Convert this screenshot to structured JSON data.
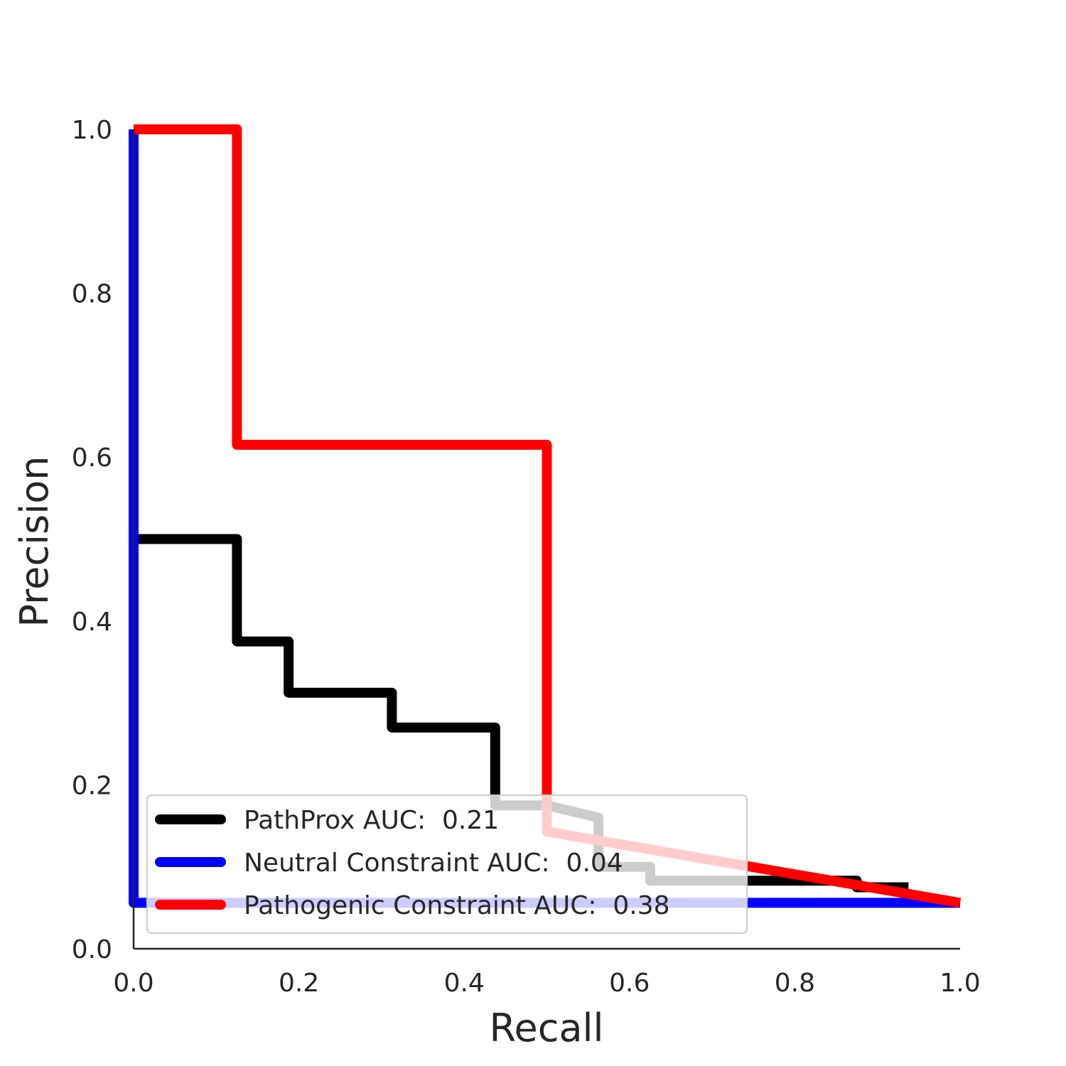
{
  "chart_data": {
    "type": "line",
    "title": "",
    "xlabel": "Recall",
    "ylabel": "Precision",
    "xlim": [
      0.0,
      1.0
    ],
    "ylim": [
      0.0,
      1.0
    ],
    "xticks": [
      "0.0",
      "0.2",
      "0.4",
      "0.6",
      "0.8",
      "1.0"
    ],
    "yticks": [
      "0.0",
      "0.2",
      "0.4",
      "0.6",
      "0.8",
      "1.0"
    ],
    "grid": false,
    "legend_position": "lower-left",
    "series": [
      {
        "name": "PathProx AUC:  0.21",
        "color": "#000000",
        "points": [
          [
            0.0,
            0.5
          ],
          [
            0.125,
            0.5
          ],
          [
            0.125,
            0.375
          ],
          [
            0.1875,
            0.375
          ],
          [
            0.1875,
            0.3125
          ],
          [
            0.3125,
            0.3125
          ],
          [
            0.3125,
            0.27
          ],
          [
            0.4375,
            0.27
          ],
          [
            0.4375,
            0.175
          ],
          [
            0.5,
            0.175
          ],
          [
            0.5625,
            0.16
          ],
          [
            0.5625,
            0.1
          ],
          [
            0.625,
            0.1
          ],
          [
            0.625,
            0.083
          ],
          [
            0.875,
            0.083
          ],
          [
            0.875,
            0.075
          ],
          [
            0.9375,
            0.075
          ]
        ]
      },
      {
        "name": "Neutral Constraint AUC:  0.04",
        "color": "#0000ff",
        "points": [
          [
            0.0,
            1.0
          ],
          [
            0.0,
            0.056
          ],
          [
            1.0,
            0.056
          ]
        ]
      },
      {
        "name": "Pathogenic Constraint AUC:  0.38",
        "color": "#ff0000",
        "points": [
          [
            0.0,
            1.0
          ],
          [
            0.125,
            1.0
          ],
          [
            0.125,
            0.615
          ],
          [
            0.5,
            0.615
          ],
          [
            0.5,
            0.143
          ],
          [
            1.0,
            0.056
          ]
        ]
      }
    ]
  }
}
